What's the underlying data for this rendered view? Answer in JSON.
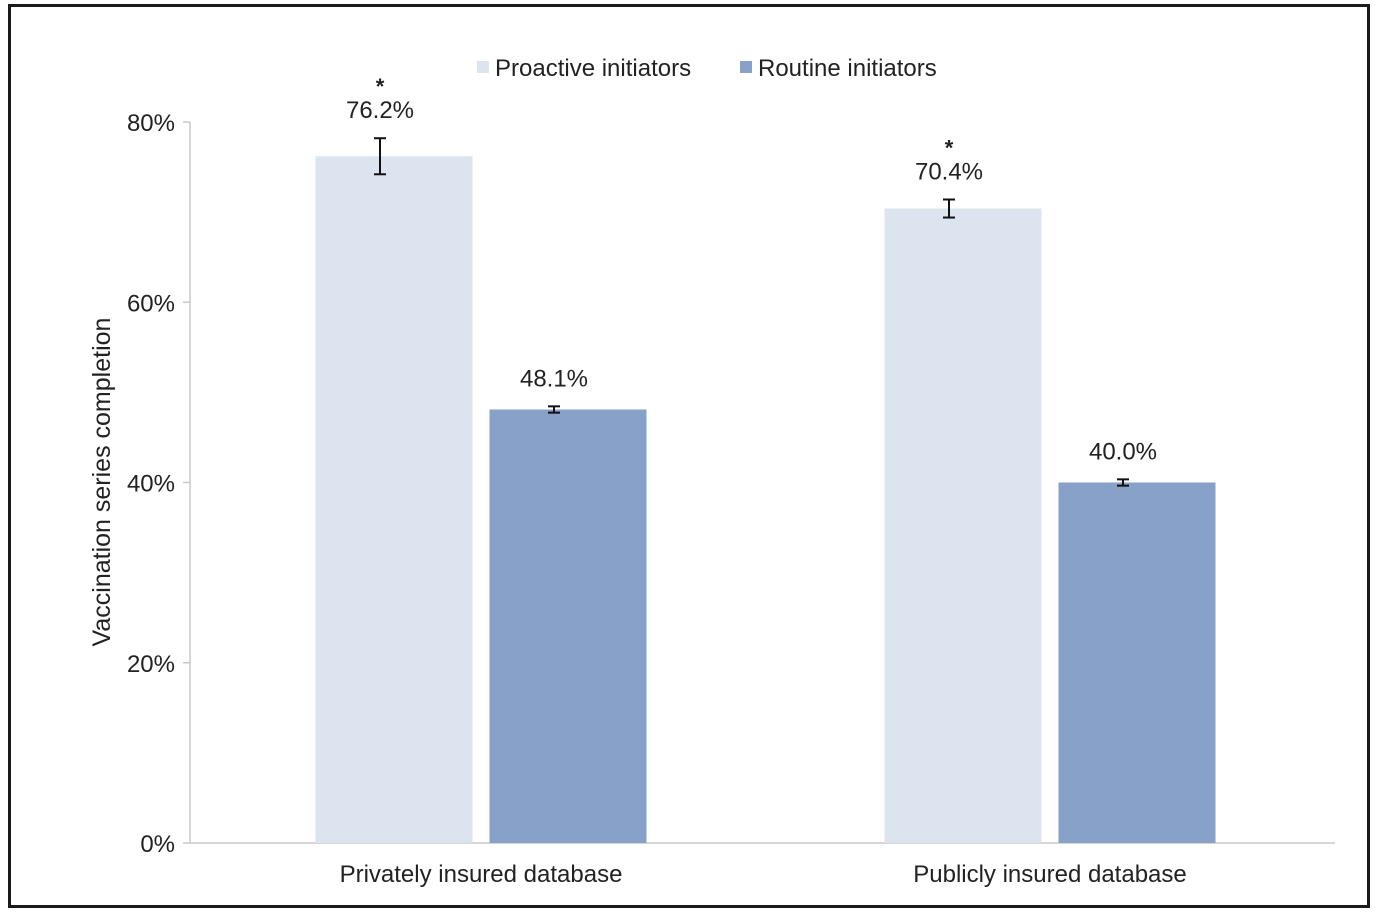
{
  "chart_data": {
    "type": "bar",
    "ylabel": "Vaccination series completion",
    "ylim": [
      0,
      80
    ],
    "yticks": [
      {
        "value": 0,
        "label": "0%"
      },
      {
        "value": 20,
        "label": "20%"
      },
      {
        "value": 40,
        "label": "40%"
      },
      {
        "value": 60,
        "label": "60%"
      },
      {
        "value": 80,
        "label": "80%"
      }
    ],
    "categories": [
      "Privately insured database",
      "Publicly insured database"
    ],
    "series": [
      {
        "name": "Proactive initiators",
        "color": "#dce5ef",
        "values": [
          76.2,
          70.4
        ],
        "labels": [
          "76.2%",
          "70.4%"
        ],
        "error": [
          2.0,
          1.0
        ],
        "significance": [
          "*",
          "*"
        ]
      },
      {
        "name": "Routine initiators",
        "color": "#87a1c9",
        "values": [
          48.1,
          40.0
        ],
        "labels": [
          "48.1%",
          "40.0%"
        ],
        "error": [
          0.35,
          0.35
        ],
        "significance": [
          "",
          ""
        ]
      }
    ],
    "grid": false,
    "legend": "top-center"
  }
}
